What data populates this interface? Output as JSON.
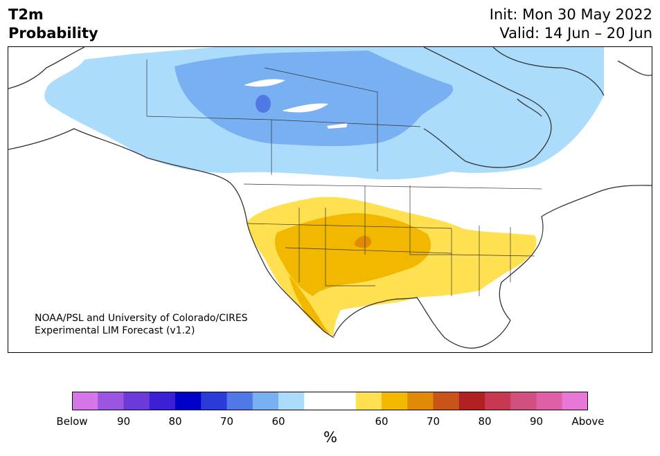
{
  "title": {
    "line1": "T2m",
    "line2": "Probability"
  },
  "subtitle": {
    "init": "Init: Mon 30 May 2022",
    "valid": "Valid: 14 Jun – 20 Jun"
  },
  "credit": {
    "line1": "NOAA/PSL and University of Colorado/CIRES",
    "line2": "Experimental LIM Forecast (v1.2)"
  },
  "colorbar": {
    "colors": [
      "#d675e8",
      "#9c55e0",
      "#6c3ad8",
      "#3a1fd4",
      "#0000c8",
      "#2a3bd8",
      "#5078e6",
      "#78b0f2",
      "#acdcfc",
      "#ffffff",
      "#ffffff",
      "#ffe050",
      "#f2b800",
      "#e08a08",
      "#c85418",
      "#b02020",
      "#c83850",
      "#d05080",
      "#e060a8",
      "#e878d8"
    ],
    "tick_labels": [
      "Below",
      "90",
      "80",
      "70",
      "60",
      "60",
      "70",
      "80",
      "90",
      "Above"
    ],
    "units": "%"
  },
  "legend_colors": {
    "below_light": "#acdcfc",
    "below_mid": "#78b0f2",
    "below_dark": "#5078e6",
    "above_light": "#ffe050",
    "above_mid": "#f2b800",
    "above_dark": "#e08a08",
    "coastline": "#333333"
  }
}
